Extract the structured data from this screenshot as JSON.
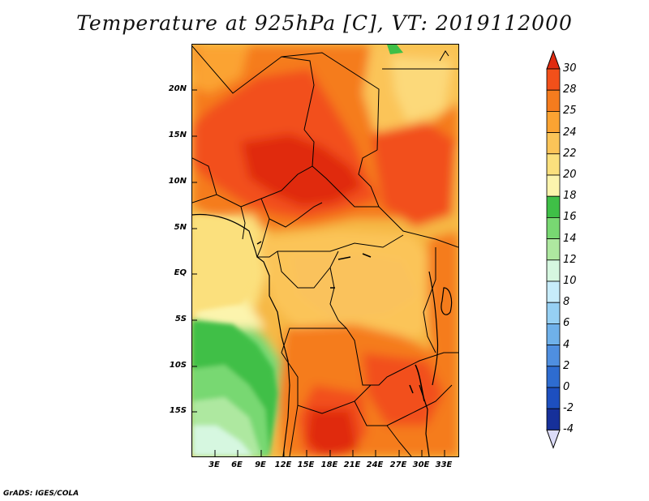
{
  "title": "Temperature at 925hPa [C], VT: 2019112000",
  "credit": "GrADS: IGES/COLA",
  "lat_labels": [
    "20N",
    "15N",
    "10N",
    "5N",
    "EQ",
    "5S",
    "10S",
    "15S"
  ],
  "lon_labels": [
    "3E",
    "6E",
    "9E",
    "12E",
    "15E",
    "18E",
    "21E",
    "24E",
    "27E",
    "30E",
    "33E"
  ],
  "colorbar": {
    "labels": [
      "30",
      "28",
      "25",
      "24",
      "22",
      "20",
      "18",
      "16",
      "14",
      "12",
      "10",
      "8",
      "6",
      "4",
      "2",
      "0",
      "-2",
      "-4"
    ],
    "colors": [
      "#e02b10",
      "#f2501a",
      "#f57c1e",
      "#fba332",
      "#fbc458",
      "#fbe07d",
      "#fcf4ad",
      "#3fbf47",
      "#78d872",
      "#aee8a0",
      "#d6f7e0",
      "#c7ecfa",
      "#96d0f3",
      "#6fb1ea",
      "#4f8fe0",
      "#2e6cd0",
      "#1d4fbf",
      "#16309a",
      "#0d1478"
    ]
  }
}
